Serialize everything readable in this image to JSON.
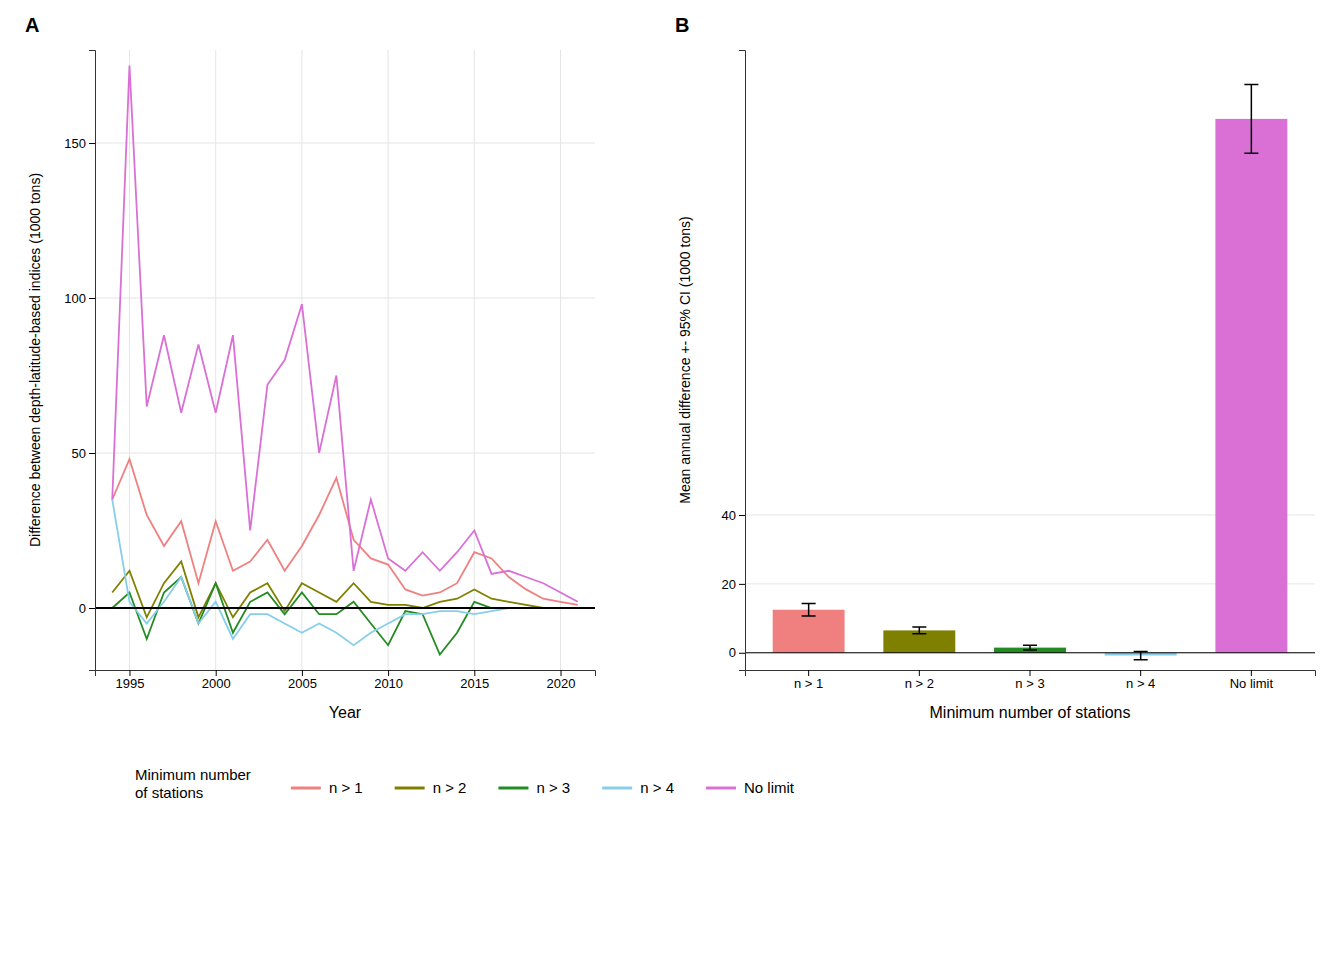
{
  "chart_data": [
    {
      "type": "line",
      "title": "A",
      "xlabel": "Year",
      "ylabel": "Difference between depth-latitude-based indices (1000 tons)",
      "x": [
        1994,
        1995,
        1996,
        1997,
        1998,
        1999,
        2000,
        2001,
        2002,
        2003,
        2004,
        2005,
        2006,
        2007,
        2008,
        2009,
        2010,
        2011,
        2012,
        2013,
        2014,
        2015,
        2016,
        2017,
        2018,
        2019,
        2020,
        2021
      ],
      "series": [
        {
          "name": "n > 1",
          "color": "#F08080",
          "values": [
            35,
            48,
            30,
            20,
            28,
            8,
            28,
            12,
            15,
            22,
            12,
            20,
            30,
            42,
            22,
            16,
            14,
            6,
            4,
            5,
            8,
            18,
            16,
            10,
            6,
            3,
            2,
            1
          ]
        },
        {
          "name": "n > 2",
          "color": "#808000",
          "values": [
            5,
            12,
            -3,
            8,
            15,
            -3,
            8,
            -3,
            5,
            8,
            -1,
            8,
            5,
            2,
            8,
            2,
            1,
            1,
            0,
            2,
            3,
            6,
            3,
            2,
            1,
            0,
            0,
            0
          ]
        },
        {
          "name": "n > 3",
          "color": "#228B22",
          "values": [
            0,
            5,
            -10,
            5,
            10,
            -5,
            8,
            -8,
            2,
            5,
            -2,
            5,
            -2,
            -2,
            2,
            -5,
            -12,
            -1,
            -2,
            -15,
            -8,
            2,
            0,
            0,
            0,
            0,
            0,
            0
          ]
        },
        {
          "name": "n > 4",
          "color": "#87CEEB",
          "values": [
            35,
            2,
            -5,
            2,
            10,
            -5,
            2,
            -10,
            -2,
            -2,
            -5,
            -8,
            -5,
            -8,
            -12,
            -8,
            -5,
            -2,
            -2,
            -1,
            -1,
            -2,
            -1,
            0,
            0,
            0,
            0,
            0
          ]
        },
        {
          "name": "No limit",
          "color": "#DA70D6",
          "values": [
            35,
            175,
            65,
            88,
            63,
            85,
            63,
            88,
            25,
            72,
            80,
            98,
            50,
            75,
            12,
            35,
            16,
            12,
            18,
            12,
            18,
            25,
            11,
            12,
            10,
            8,
            5,
            2
          ]
        }
      ],
      "xlim": [
        1993,
        2022
      ],
      "xticks": [
        1995,
        2000,
        2005,
        2010,
        2015,
        2020
      ],
      "ylim": [
        -20,
        180
      ],
      "yticks": [
        0,
        50,
        100,
        150
      ],
      "grid": true,
      "legend": "bottom",
      "legend_title": "Minimum number\nof stations"
    },
    {
      "type": "bar",
      "title": "B",
      "xlabel": "Minimum number of stations",
      "ylabel": "Mean annual difference +- 95% CI (1000 tons)",
      "categories": [
        "n > 1",
        "n > 2",
        "n > 3",
        "n > 4",
        "No limit"
      ],
      "values": [
        12.5,
        6.5,
        1.5,
        -0.8,
        155.0
      ],
      "errors": [
        1.8,
        1.0,
        0.7,
        1.2,
        10.0
      ],
      "colors": [
        "#F08080",
        "#808000",
        "#228B22",
        "#87CEEB",
        "#DA70D6"
      ],
      "ylim": [
        -5,
        175
      ],
      "yticks": [
        0,
        20,
        40
      ],
      "grid": true
    }
  ]
}
